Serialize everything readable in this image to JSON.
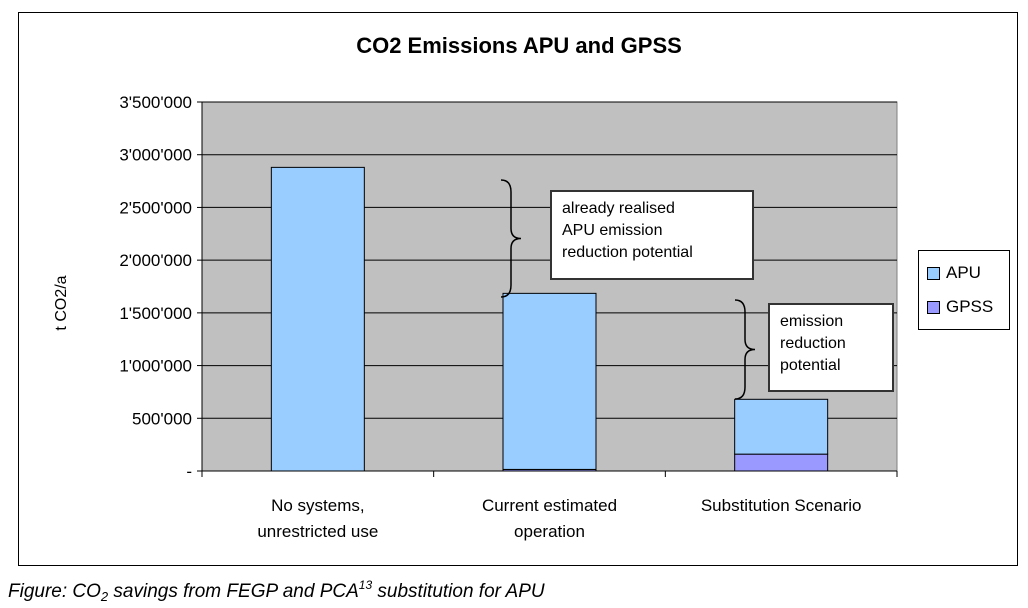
{
  "caption": {
    "part1": "Figure: CO",
    "sub": "2",
    "part2": " savings from FEGP and PCA",
    "sup": "13",
    "part3": " substitution for APU"
  },
  "chart_data": {
    "type": "bar",
    "stacked": true,
    "title": "CO2 Emissions APU and GPSS",
    "ylabel": "t CO2/a",
    "xlabel": "",
    "ylim": [
      0,
      3500000
    ],
    "yticks": [
      0,
      500000,
      1000000,
      1500000,
      2000000,
      2500000,
      3000000,
      3500000
    ],
    "ytick_labels": [
      "-",
      "500'000",
      "1'000'000",
      "1'500'000",
      "2'000'000",
      "2'500'000",
      "3'000'000",
      "3'500'000"
    ],
    "categories": [
      [
        "No systems,",
        "unrestricted use"
      ],
      [
        "Current estimated",
        "operation"
      ],
      [
        "Substitution Scenario"
      ]
    ],
    "series": [
      {
        "name": "GPSS",
        "values": [
          0,
          15000,
          160000
        ],
        "color": "#9999ff"
      },
      {
        "name": "APU",
        "values": [
          2880000,
          1670000,
          520000
        ],
        "color": "#99ccff"
      }
    ],
    "grid": true,
    "plot_background": "#c0c0c0",
    "legend": {
      "position": "right",
      "entries": [
        "APU",
        "GPSS"
      ]
    },
    "annotations": [
      {
        "text": [
          "already realised",
          "APU emission",
          "reduction potential"
        ]
      },
      {
        "text": [
          "emission",
          "reduction",
          "potential"
        ]
      }
    ]
  }
}
